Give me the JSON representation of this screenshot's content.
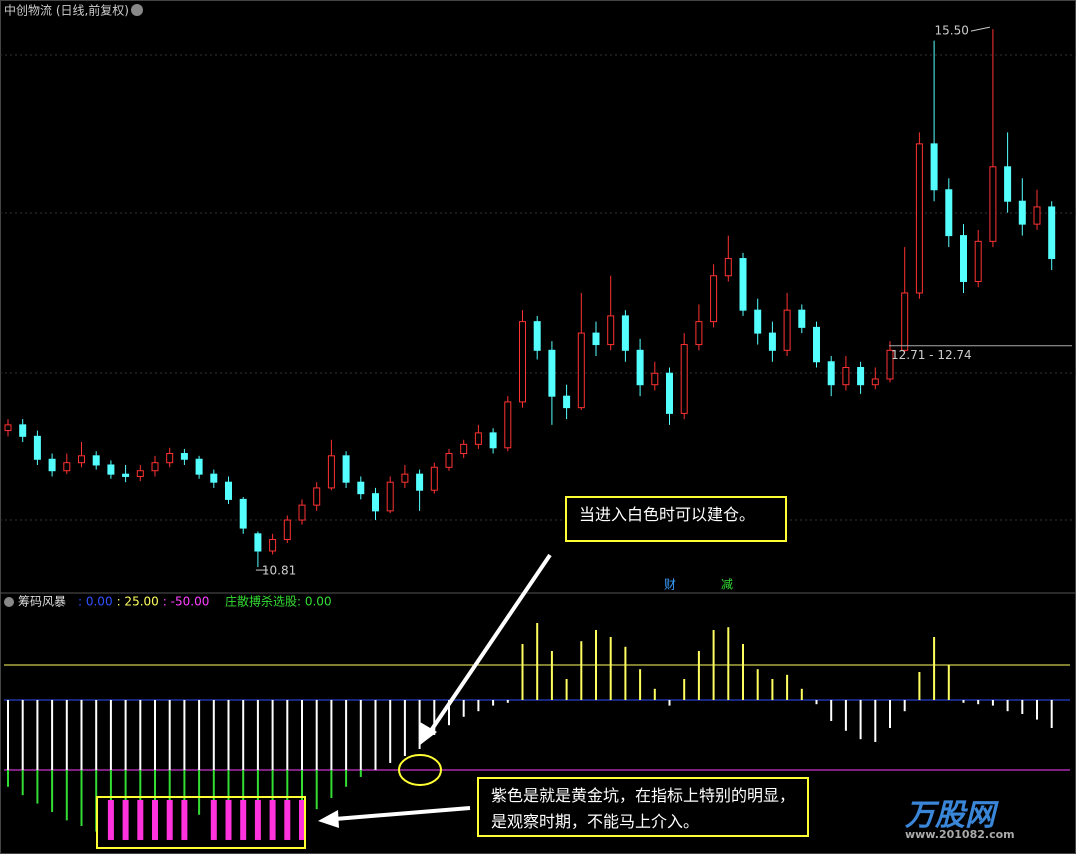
{
  "header": {
    "title": "中创物流 (日线,前复权)"
  },
  "chart_data": [
    {
      "type": "candlestick",
      "up_color": "#ff3232",
      "down_color": "#54ffff",
      "ylim": [
        10.61,
        15.58
      ],
      "max_label": "15.50",
      "min_label": "10.81",
      "range": {
        "values": [
          12.71,
          12.74
        ],
        "label": "12.71 - 12.74"
      },
      "candles": [
        [
          12.0,
          12.1,
          11.95,
          12.05
        ],
        [
          12.05,
          12.1,
          11.9,
          11.95
        ],
        [
          11.95,
          12.0,
          11.7,
          11.75
        ],
        [
          11.75,
          11.8,
          11.6,
          11.65
        ],
        [
          11.65,
          11.8,
          11.62,
          11.72
        ],
        [
          11.72,
          11.9,
          11.68,
          11.78
        ],
        [
          11.78,
          11.82,
          11.66,
          11.7
        ],
        [
          11.7,
          11.74,
          11.58,
          11.62
        ],
        [
          11.62,
          11.7,
          11.55,
          11.6
        ],
        [
          11.6,
          11.7,
          11.56,
          11.65
        ],
        [
          11.65,
          11.78,
          11.6,
          11.72
        ],
        [
          11.72,
          11.85,
          11.68,
          11.8
        ],
        [
          11.8,
          11.84,
          11.7,
          11.75
        ],
        [
          11.75,
          11.78,
          11.58,
          11.62
        ],
        [
          11.62,
          11.66,
          11.5,
          11.55
        ],
        [
          11.55,
          11.6,
          11.36,
          11.4
        ],
        [
          11.4,
          11.42,
          11.1,
          11.15
        ],
        [
          11.1,
          11.12,
          10.81,
          10.95
        ],
        [
          10.95,
          11.1,
          10.92,
          11.05
        ],
        [
          11.05,
          11.26,
          11.02,
          11.22
        ],
        [
          11.22,
          11.4,
          11.18,
          11.35
        ],
        [
          11.35,
          11.55,
          11.3,
          11.5
        ],
        [
          11.5,
          11.92,
          11.48,
          11.78
        ],
        [
          11.78,
          11.82,
          11.5,
          11.55
        ],
        [
          11.55,
          11.6,
          11.4,
          11.45
        ],
        [
          11.45,
          11.5,
          11.22,
          11.3
        ],
        [
          11.3,
          11.6,
          11.28,
          11.55
        ],
        [
          11.55,
          11.7,
          11.5,
          11.62
        ],
        [
          11.62,
          11.66,
          11.3,
          11.48
        ],
        [
          11.48,
          11.72,
          11.45,
          11.68
        ],
        [
          11.68,
          11.84,
          11.65,
          11.8
        ],
        [
          11.8,
          11.92,
          11.76,
          11.88
        ],
        [
          11.88,
          12.05,
          11.84,
          11.98
        ],
        [
          11.98,
          12.02,
          11.8,
          11.85
        ],
        [
          11.85,
          12.3,
          11.82,
          12.25
        ],
        [
          12.25,
          13.05,
          12.2,
          12.95
        ],
        [
          12.95,
          13.0,
          12.62,
          12.7
        ],
        [
          12.7,
          12.78,
          12.05,
          12.3
        ],
        [
          12.3,
          12.4,
          12.1,
          12.2
        ],
        [
          12.2,
          13.2,
          12.18,
          12.85
        ],
        [
          12.85,
          12.95,
          12.65,
          12.75
        ],
        [
          12.75,
          13.35,
          12.7,
          13.0
        ],
        [
          13.0,
          13.05,
          12.6,
          12.7
        ],
        [
          12.7,
          12.8,
          12.3,
          12.4
        ],
        [
          12.4,
          12.6,
          12.35,
          12.5
        ],
        [
          12.5,
          12.55,
          12.05,
          12.15
        ],
        [
          12.15,
          12.85,
          12.1,
          12.75
        ],
        [
          12.75,
          13.1,
          12.7,
          12.95
        ],
        [
          12.95,
          13.45,
          12.9,
          13.35
        ],
        [
          13.35,
          13.7,
          13.3,
          13.5
        ],
        [
          13.5,
          13.55,
          13.0,
          13.05
        ],
        [
          13.05,
          13.15,
          12.75,
          12.85
        ],
        [
          12.85,
          12.95,
          12.6,
          12.7
        ],
        [
          12.7,
          13.2,
          12.65,
          13.05
        ],
        [
          13.05,
          13.1,
          12.85,
          12.9
        ],
        [
          12.9,
          12.95,
          12.55,
          12.6
        ],
        [
          12.6,
          12.65,
          12.3,
          12.4
        ],
        [
          12.4,
          12.65,
          12.35,
          12.55
        ],
        [
          12.55,
          12.6,
          12.32,
          12.4
        ],
        [
          12.4,
          12.55,
          12.36,
          12.45
        ],
        [
          12.45,
          12.78,
          12.42,
          12.7
        ],
        [
          12.7,
          13.6,
          12.68,
          13.2
        ],
        [
          13.2,
          14.6,
          13.15,
          14.5
        ],
        [
          14.5,
          15.4,
          14.0,
          14.1
        ],
        [
          14.1,
          14.2,
          13.6,
          13.7
        ],
        [
          13.7,
          13.8,
          13.2,
          13.3
        ],
        [
          13.3,
          13.75,
          13.25,
          13.65
        ],
        [
          13.65,
          15.5,
          13.6,
          14.3
        ],
        [
          14.3,
          14.6,
          13.9,
          14.0
        ],
        [
          14.0,
          14.2,
          13.7,
          13.8
        ],
        [
          13.8,
          14.1,
          13.75,
          13.95
        ],
        [
          13.95,
          14.0,
          13.4,
          13.5
        ]
      ],
      "events": [
        "财",
        "减"
      ]
    },
    {
      "type": "bar",
      "title": "筹码风暴",
      "ylim": [
        -108.6,
        64.3
      ],
      "lines": [
        {
          "value": 0,
          "label": ": 0.00",
          "color": "#3050ff"
        },
        {
          "value": 25,
          "label": ": 25.00",
          "color": "#ffff60"
        },
        {
          "value": -50,
          "label": ": -50.00",
          "color": "#ff40ff"
        }
      ],
      "signal": {
        "value": 0,
        "label": "庄散搏杀选股: 0.00",
        "color": "#33dd33"
      },
      "series": [
        {
          "colors": [
            "#ffff60",
            "#ffffff",
            "#33dd33"
          ],
          "values": [
            -62,
            -68,
            -74,
            -80,
            -86,
            -90,
            -94,
            -96,
            -96,
            -95,
            -93,
            -90,
            -86,
            -82,
            -86,
            -90,
            -94,
            -96,
            -95,
            -92,
            -86,
            -78,
            -70,
            -62,
            -55,
            -50,
            -45,
            -40,
            -35,
            -25,
            -18,
            -12,
            -8,
            -4,
            -2,
            40,
            55,
            35,
            15,
            42,
            50,
            45,
            38,
            22,
            8,
            -4,
            15,
            35,
            50,
            52,
            40,
            22,
            15,
            18,
            8,
            -3,
            -15,
            -22,
            -28,
            -30,
            -20,
            -8,
            20,
            45,
            25,
            -2,
            -3,
            -4,
            -8,
            -10,
            -14,
            -20
          ]
        },
        {
          "color": "#ff33dd",
          "values": [
            null,
            null,
            null,
            null,
            null,
            null,
            null,
            -100,
            -100,
            -100,
            -100,
            -100,
            -100,
            null,
            -100,
            -100,
            -100,
            -100,
            -100,
            -100,
            -100,
            null,
            null,
            null,
            null,
            null,
            null,
            null,
            null,
            null,
            null,
            null,
            null,
            null,
            null,
            null,
            null,
            null,
            null,
            null,
            null,
            null,
            null,
            null,
            null,
            null,
            null,
            null,
            null,
            null,
            null,
            null,
            null,
            null,
            null,
            null,
            null,
            null,
            null,
            null,
            null,
            null,
            null,
            null,
            null,
            null,
            null,
            null,
            null,
            null,
            null,
            null
          ]
        }
      ]
    }
  ],
  "annotations": [
    {
      "text": "当进入白色时可以建仓。"
    },
    {
      "text": "紫色是就是黄金坑，在指标上特别的明显，是观察时期，不能马上介入。"
    }
  ],
  "watermark": {
    "brand": "万股网",
    "url": "www.201082.com"
  }
}
